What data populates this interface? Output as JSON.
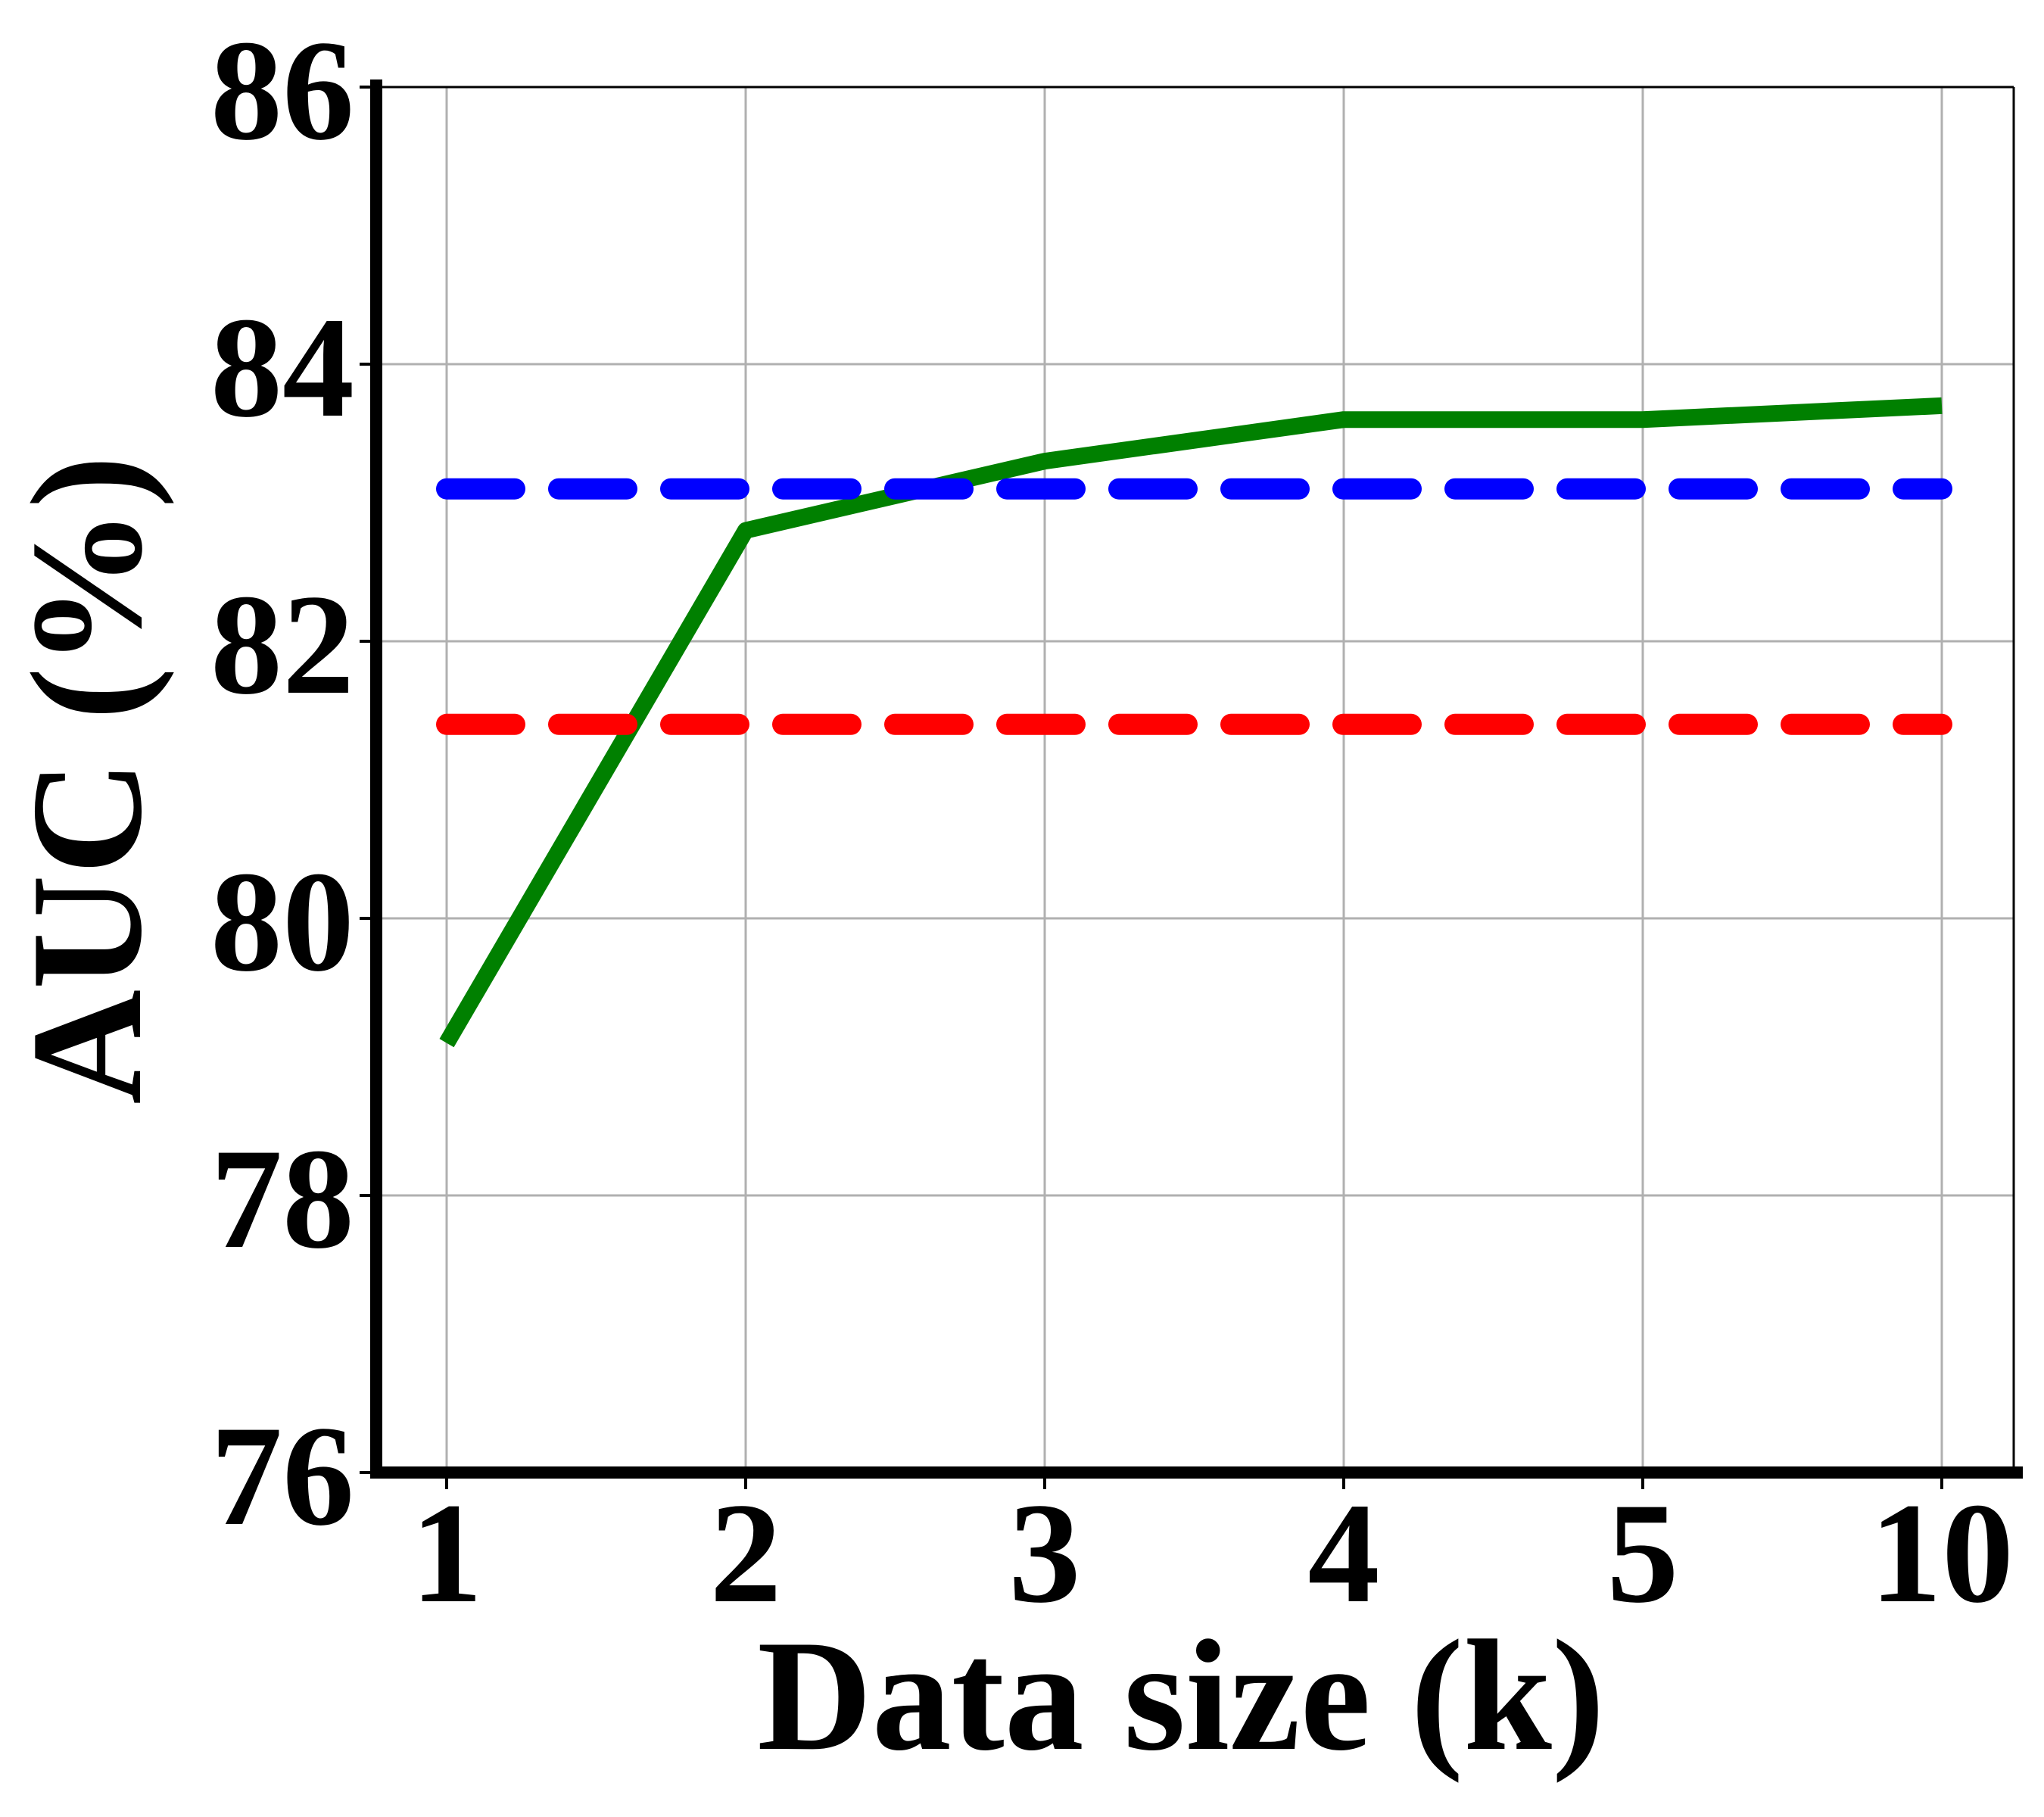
{
  "chart_data": {
    "type": "line",
    "title": "",
    "xlabel": "Data size (k)",
    "ylabel": "AUC (%)",
    "x_categories": [
      "1",
      "2",
      "3",
      "4",
      "5",
      "10"
    ],
    "ylim": [
      76,
      86
    ],
    "y_ticks": [
      76,
      78,
      80,
      82,
      84,
      86
    ],
    "grid": true,
    "legend": "none",
    "series": [
      {
        "style": "solid",
        "color": "#008000",
        "values": [
          79.1,
          82.8,
          83.3,
          83.6,
          83.6,
          83.7
        ]
      },
      {
        "style": "dashed",
        "color": "#0000ff",
        "values": [
          83.1,
          83.1,
          83.1,
          83.1,
          83.1,
          83.1
        ]
      },
      {
        "style": "dashed",
        "color": "#ff0000",
        "values": [
          81.4,
          81.4,
          81.4,
          81.4,
          81.4,
          81.4
        ]
      }
    ]
  }
}
